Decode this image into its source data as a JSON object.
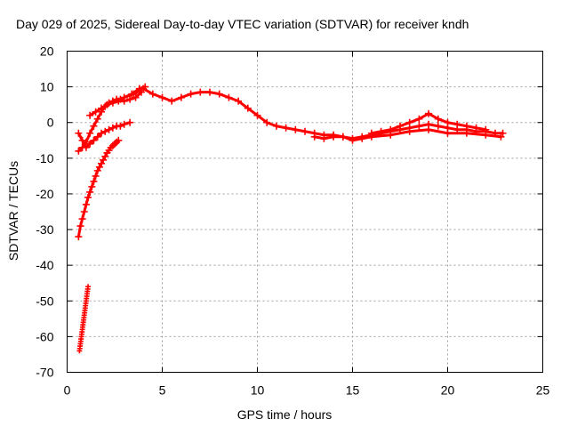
{
  "chart_data": {
    "type": "scatter",
    "title": "Day 029 of 2025, Sidereal Day-to-day VTEC variation (SDTVAR) for receiver kndh",
    "xlabel": "GPS time / hours",
    "ylabel": "SDTVAR / TECUs",
    "xlim": [
      0,
      25
    ],
    "ylim": [
      -70,
      20
    ],
    "xticks": [
      0,
      5,
      10,
      15,
      20,
      25
    ],
    "yticks": [
      -70,
      -60,
      -50,
      -40,
      -30,
      -20,
      -10,
      0,
      10,
      20
    ],
    "grid": true,
    "marker": "+",
    "color": "#ff0000",
    "series": [
      {
        "name": "satellite-track-main",
        "x": [
          3.0,
          3.5,
          4.0,
          4.5,
          5.0,
          5.5,
          6.0,
          6.5,
          7.0,
          7.5,
          8.0,
          8.5,
          9.0,
          9.5,
          10.0,
          10.5,
          11.0,
          11.5,
          12.0,
          12.5,
          13.0,
          13.5,
          14.0,
          14.5,
          15.0,
          15.5,
          16.0,
          16.5,
          17.0,
          17.5,
          18.0,
          18.5,
          19.0,
          19.5,
          20.0,
          20.5,
          21.0,
          21.5,
          22.0,
          22.5,
          22.9
        ],
        "y": [
          7,
          8,
          9.5,
          8,
          7,
          6,
          7,
          8,
          8.5,
          8.5,
          8,
          7,
          6,
          4,
          2,
          0,
          -1,
          -1.5,
          -2,
          -2.5,
          -3,
          -3.5,
          -3.5,
          -4,
          -4.5,
          -4,
          -3.5,
          -3,
          -2.5,
          -2,
          -1.5,
          -1,
          -0.5,
          -1,
          -1.5,
          -2,
          -2,
          -2.5,
          -2.5,
          -3,
          -3
        ]
      },
      {
        "name": "satellite-track-upper",
        "x": [
          16.0,
          16.5,
          17.0,
          17.5,
          18.0,
          18.5,
          19.0,
          19.5,
          20.0,
          20.5,
          21.0,
          21.5,
          22.0
        ],
        "y": [
          -3,
          -2.5,
          -2,
          -1,
          0,
          1,
          2.5,
          1,
          0,
          -0.5,
          -1,
          -1.5,
          -2
        ]
      },
      {
        "name": "satellite-track-lower",
        "x": [
          13.0,
          13.5,
          14.0,
          14.5,
          15.0,
          15.5,
          16.0,
          17.0,
          18.0,
          19.0,
          20.0,
          21.0,
          22.0,
          22.8
        ],
        "y": [
          -4,
          -4.5,
          -4,
          -4,
          -5,
          -4.5,
          -4,
          -3.5,
          -2.5,
          -2,
          -3,
          -3,
          -3.5,
          -4
        ]
      },
      {
        "name": "rising-arc-1",
        "x": [
          0.6,
          0.8,
          1.0,
          1.2,
          1.4,
          1.6,
          1.8,
          2.0,
          2.2,
          2.4,
          2.6,
          2.8,
          3.0,
          3.4,
          3.8,
          4.1
        ],
        "y": [
          -8,
          -7,
          -5.5,
          -3,
          -1,
          1,
          3,
          4.5,
          5.5,
          6,
          6.5,
          6.5,
          7,
          8,
          9.5,
          10
        ]
      },
      {
        "name": "rising-arc-2",
        "x": [
          1.2,
          1.5,
          1.8,
          2.1,
          2.4,
          2.7,
          3.0,
          3.3,
          3.6,
          3.9
        ],
        "y": [
          2,
          3,
          4,
          5,
          5.5,
          6,
          6,
          6.5,
          7,
          8.5
        ]
      },
      {
        "name": "rising-arc-3",
        "x": [
          0.6,
          0.8,
          1.0,
          1.2,
          1.4,
          1.6,
          1.8,
          2.0,
          2.2,
          2.4,
          2.6,
          2.8,
          3.0,
          3.3
        ],
        "y": [
          -3,
          -5,
          -7,
          -6,
          -5,
          -4,
          -3,
          -2.5,
          -2,
          -1.5,
          -1,
          -1,
          -0.5,
          0
        ]
      },
      {
        "name": "steep-arc",
        "x": [
          0.6,
          0.7,
          0.8,
          0.9,
          1.0,
          1.1,
          1.2,
          1.3,
          1.4,
          1.5,
          1.6,
          1.7,
          1.8,
          1.9,
          2.0,
          2.1,
          2.2,
          2.3,
          2.4,
          2.5,
          2.6,
          2.7
        ],
        "y": [
          -32,
          -29,
          -27,
          -25,
          -23,
          -21,
          -19.5,
          -18,
          -16.5,
          -15,
          -13.5,
          -12.5,
          -11.5,
          -10.5,
          -9.5,
          -8.5,
          -7.8,
          -7,
          -6.5,
          -6,
          -5.5,
          -5
        ]
      },
      {
        "name": "isolated-arc",
        "x": [
          0.65,
          0.7,
          0.75,
          0.8,
          0.85,
          0.9,
          0.95,
          1.0,
          1.05,
          1.1
        ],
        "y": [
          -64,
          -62,
          -60,
          -58,
          -56,
          -54,
          -52,
          -50,
          -48,
          -46
        ]
      }
    ]
  }
}
